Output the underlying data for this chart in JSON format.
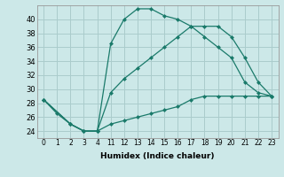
{
  "background_color": "#cce8e8",
  "grid_color": "#aacccc",
  "line_color": "#1a7a6a",
  "xlabel": "Humidex (Indice chaleur)",
  "xlabels": [
    "0",
    "1",
    "2",
    "3",
    "4",
    "11",
    "12",
    "13",
    "14",
    "15",
    "16",
    "17",
    "18",
    "19",
    "20",
    "21",
    "22",
    "23"
  ],
  "ylim": [
    23,
    42
  ],
  "yticks": [
    24,
    26,
    28,
    30,
    32,
    34,
    36,
    38,
    40
  ],
  "line1_xi": [
    0,
    1,
    2,
    3,
    4,
    5,
    6,
    7,
    8,
    9,
    10,
    11,
    12,
    13,
    14,
    15,
    16,
    17
  ],
  "line1_y": [
    28.5,
    26.5,
    25.0,
    24.0,
    24.0,
    36.5,
    40.0,
    41.5,
    41.5,
    40.5,
    40.0,
    39.0,
    39.0,
    39.0,
    37.5,
    34.5,
    31.0,
    29.0
  ],
  "line2_xi": [
    0,
    2,
    3,
    4,
    5,
    6,
    7,
    8,
    9,
    10,
    11,
    12,
    13,
    14,
    15,
    16,
    17
  ],
  "line2_y": [
    28.5,
    25.0,
    24.0,
    24.0,
    29.5,
    31.5,
    33.0,
    34.5,
    36.0,
    37.5,
    39.0,
    37.5,
    36.0,
    34.5,
    31.0,
    29.5,
    29.0
  ],
  "line3_xi": [
    0,
    2,
    3,
    4,
    5,
    6,
    7,
    8,
    9,
    10,
    11,
    12,
    13,
    14,
    15,
    16,
    17
  ],
  "line3_y": [
    28.5,
    25.0,
    24.0,
    24.0,
    25.0,
    25.5,
    26.0,
    26.5,
    27.0,
    27.5,
    28.5,
    29.0,
    29.0,
    29.0,
    29.0,
    29.0,
    29.0
  ]
}
